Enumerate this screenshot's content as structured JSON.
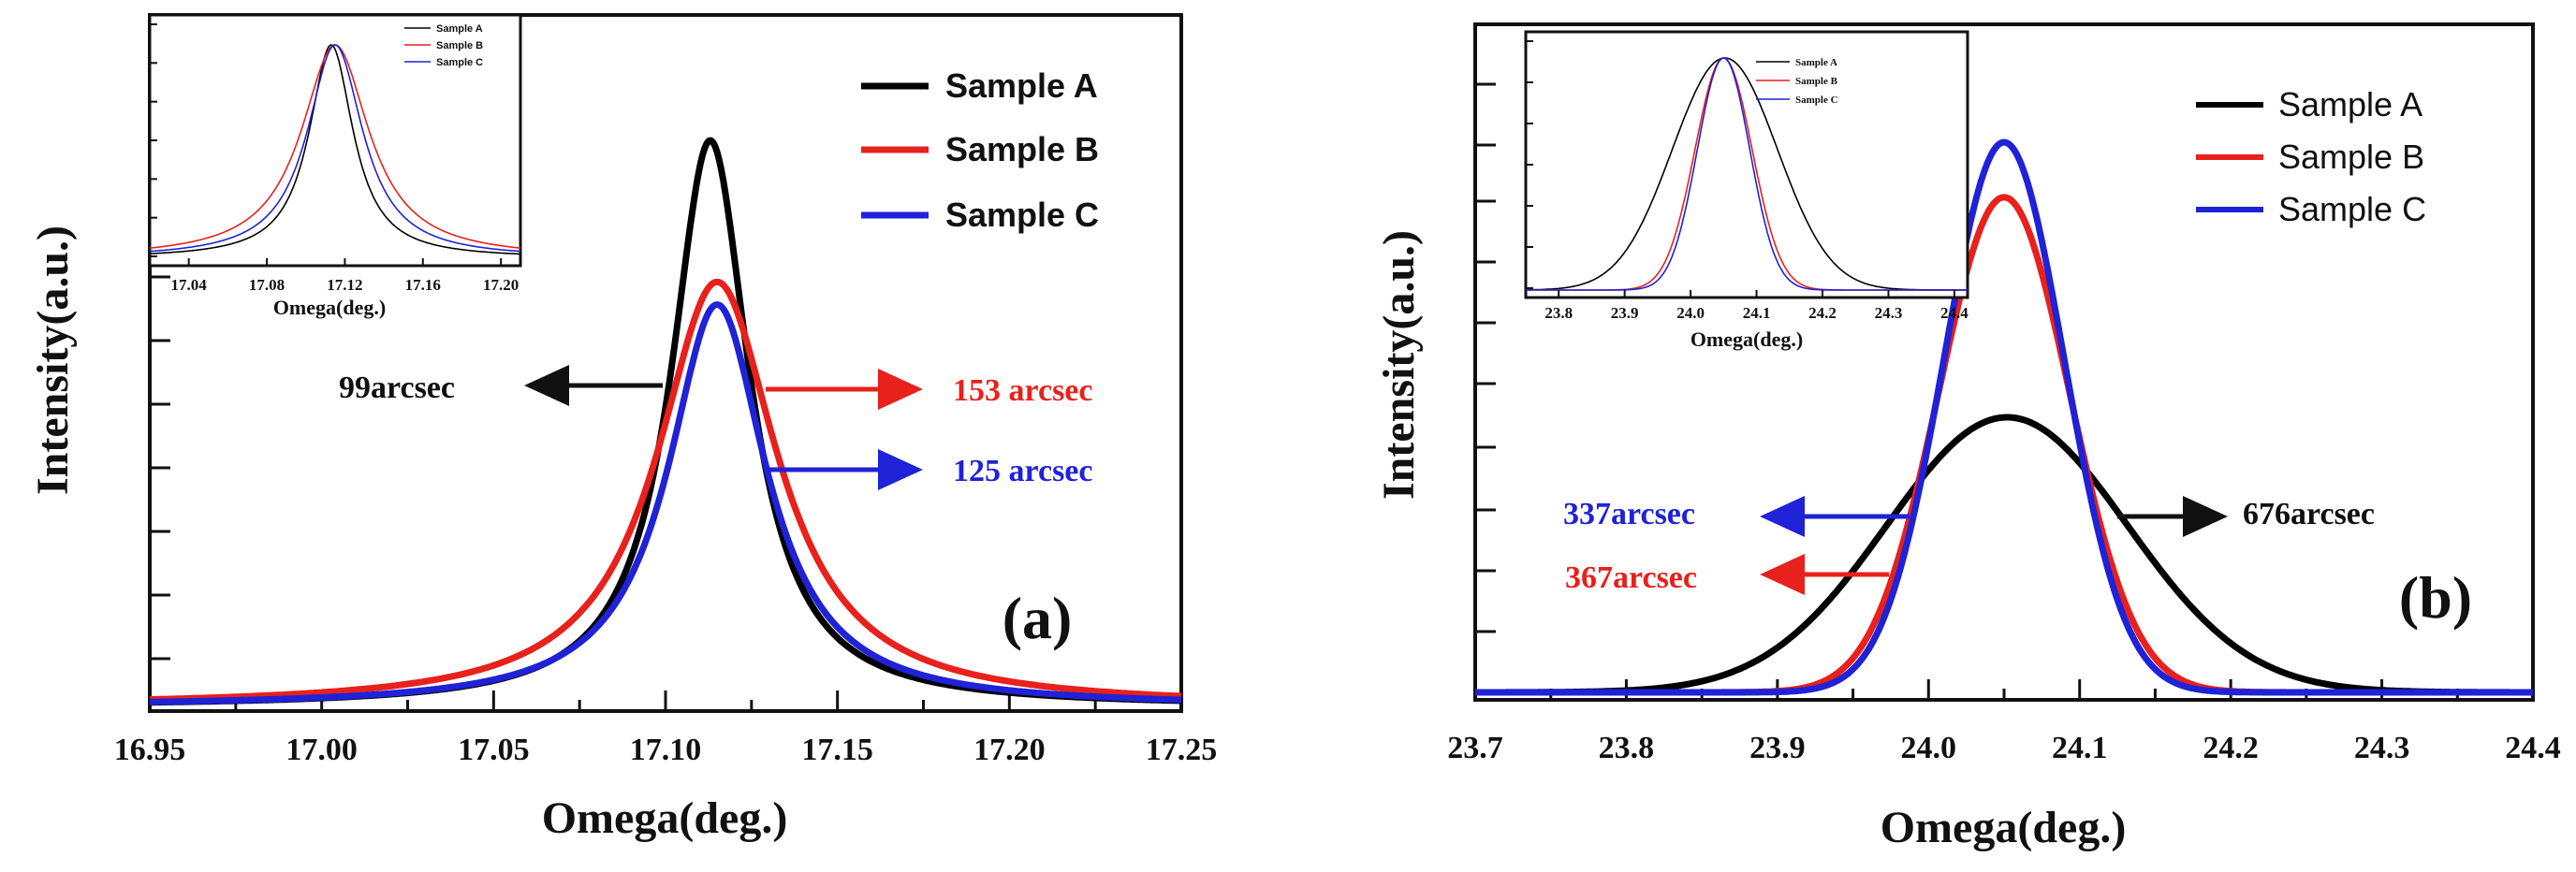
{
  "chart_data": [
    {
      "type": "line",
      "panel_label": "(a)",
      "xlabel": "Omega(deg.)",
      "ylabel": "Intensity(a.u.)",
      "xlim": [
        16.95,
        17.25
      ],
      "ylim": [
        0,
        1.1
      ],
      "x_ticks": [
        "16.95",
        "17.00",
        "17.05",
        "17.10",
        "17.15",
        "17.20",
        "17.25"
      ],
      "legend_style": "bold",
      "series": [
        {
          "name": "Sample A",
          "color": "#000000",
          "center": 17.113,
          "fwhm_deg": 0.0275,
          "peak": 1.0
        },
        {
          "name": "Sample B",
          "color": "#e8211c",
          "center": 17.115,
          "fwhm_deg": 0.0425,
          "peak": 0.75
        },
        {
          "name": "Sample C",
          "color": "#1f22d6",
          "center": 17.115,
          "fwhm_deg": 0.0347,
          "peak": 0.71
        }
      ],
      "annotations": [
        {
          "text": "99arcsec",
          "color": "#111111",
          "direction": "left",
          "series": "Sample A"
        },
        {
          "text": "153 arcsec",
          "color": "#e8211c",
          "direction": "right",
          "series": "Sample B"
        },
        {
          "text": "125 arcsec",
          "color": "#1f22d6",
          "direction": "right",
          "series": "Sample C"
        }
      ],
      "inset": {
        "xlabel": "Omega(deg.)",
        "xlim": [
          17.02,
          17.21
        ],
        "x_ticks": [
          "17.04",
          "17.08",
          "17.12",
          "17.16",
          "17.20"
        ],
        "legend": [
          "Sample A",
          "Sample B",
          "Sample C"
        ]
      }
    },
    {
      "type": "line",
      "panel_label": "(b)",
      "xlabel": "Omega(deg.)",
      "ylabel": "Intensity(a.u.)",
      "xlim": [
        23.7,
        24.4
      ],
      "ylim": [
        0,
        1.1
      ],
      "x_ticks": [
        "23.7",
        "23.8",
        "23.9",
        "24.0",
        "24.1",
        "24.2",
        "24.3",
        "24.4"
      ],
      "legend_style": "plain",
      "series": [
        {
          "name": "Sample A",
          "color": "#000000",
          "center": 24.052,
          "fwhm_deg": 0.1878,
          "peak": 0.5
        },
        {
          "name": "Sample B",
          "color": "#e8211c",
          "center": 24.05,
          "fwhm_deg": 0.1019,
          "peak": 0.9
        },
        {
          "name": "Sample C",
          "color": "#1f22d6",
          "center": 24.05,
          "fwhm_deg": 0.0936,
          "peak": 1.0
        }
      ],
      "annotations": [
        {
          "text": "337arcsec",
          "color": "#1f22d6",
          "direction": "left",
          "series": "Sample C"
        },
        {
          "text": "367arcsec",
          "color": "#e8211c",
          "direction": "left",
          "series": "Sample B"
        },
        {
          "text": "676arcsec",
          "color": "#111111",
          "direction": "right",
          "series": "Sample A"
        }
      ],
      "inset": {
        "xlabel": "Omega(deg.)",
        "xlim": [
          23.75,
          24.42
        ],
        "x_ticks": [
          "23.8",
          "23.9",
          "24.0",
          "24.1",
          "24.2",
          "24.3",
          "24.4"
        ],
        "legend": [
          "Sample A",
          "Sample B",
          "Sample C"
        ]
      }
    }
  ]
}
